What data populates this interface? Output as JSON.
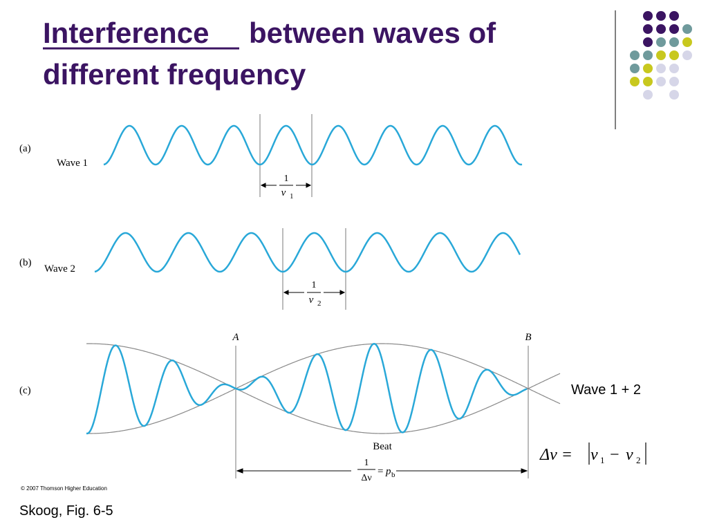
{
  "title": {
    "underlined": "Interference",
    "rest": "between waves of",
    "line2": "different frequency"
  },
  "panels": [
    {
      "label": "(a)",
      "wave": "Wave 1",
      "period": {
        "numerator": "1",
        "symbol": "ν",
        "subscript": "1"
      }
    },
    {
      "label": "(b)",
      "wave": "Wave 2",
      "period": {
        "numerator": "1",
        "symbol": "ν",
        "subscript": "2"
      }
    },
    {
      "label": "(c)",
      "point_a": "A",
      "point_b": "B",
      "envelope": "Beat",
      "period": {
        "numerator": "1",
        "denominator": "Δν",
        "equals": "=",
        "symbol": "p",
        "subscript": "b"
      }
    }
  ],
  "annotation": "Wave 1 + 2",
  "formula": {
    "delta": "Δν =",
    "v1": "ν",
    "s1": "1",
    "minus": "−",
    "v2": "ν",
    "s2": "2"
  },
  "copyright": "© 2007 Thomson Higher Education",
  "caption": "Skoog, Fig. 6-5"
}
